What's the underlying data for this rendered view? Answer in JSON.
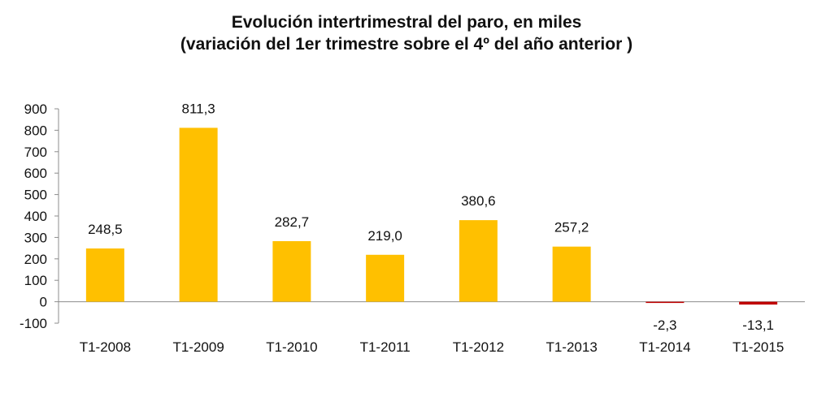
{
  "chart_data": {
    "type": "bar",
    "title": "Evolución intertrimestral del paro, en miles",
    "subtitle": "(variación del 1er trimestre  sobre el 4º del año anterior )",
    "xlabel": "",
    "ylabel": "",
    "categories": [
      "T1-2008",
      "T1-2009",
      "T1-2010",
      "T1-2011",
      "T1-2012",
      "T1-2013",
      "T1-2014",
      "T1-2015"
    ],
    "values": [
      248.5,
      811.3,
      282.7,
      219.0,
      380.6,
      257.2,
      -2.3,
      -13.1
    ],
    "data_labels": [
      "248,5",
      "811,3",
      "282,7",
      "219,0",
      "380,6",
      "257,2",
      "-2,3",
      "-13,1"
    ],
    "ylim": [
      -100,
      900
    ],
    "yticks": [
      -100,
      0,
      100,
      200,
      300,
      400,
      500,
      600,
      700,
      800,
      900
    ],
    "grid": false,
    "legend": "none",
    "colors": {
      "positive": "#FFC000",
      "negative": "#C00000",
      "axis": "#8c8c8c"
    }
  }
}
